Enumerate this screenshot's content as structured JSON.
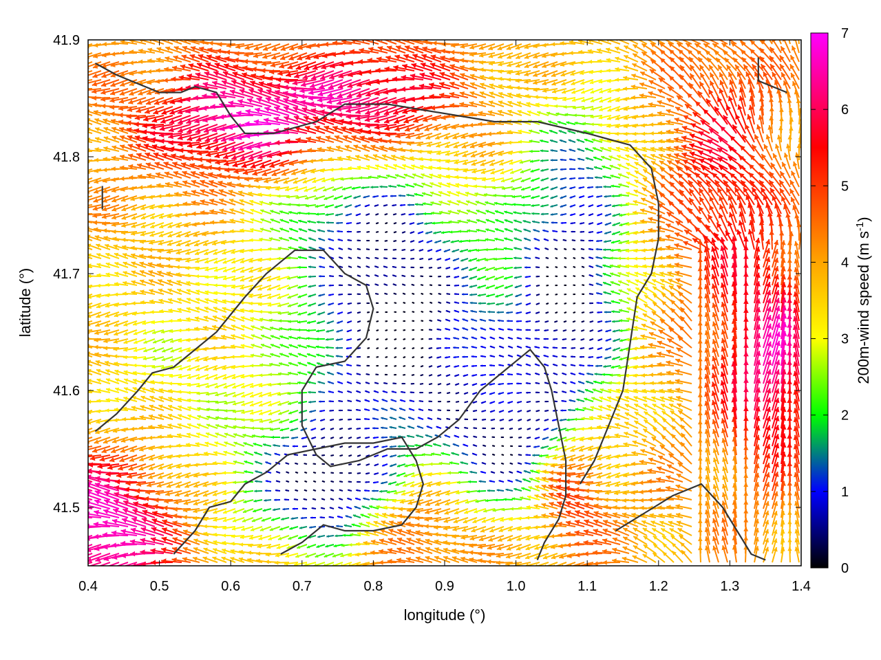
{
  "chart_data": {
    "type": "vector-field",
    "xlabel": "longitude (°)",
    "ylabel": "latitude (°)",
    "xlim": [
      0.4,
      1.4
    ],
    "ylim": [
      41.45,
      41.9
    ],
    "xticks": [
      "0.4",
      "0.5",
      "0.6",
      "0.7",
      "0.8",
      "0.9",
      "1.0",
      "1.1",
      "1.2",
      "1.3",
      "1.4"
    ],
    "yticks": [
      "41.5",
      "41.6",
      "41.7",
      "41.8",
      "41.9"
    ],
    "colorbar": {
      "label_prefix": "200m-wind speed (m s",
      "label_exp": "-1",
      "label_suffix": ")",
      "range": [
        0,
        7
      ],
      "ticks": [
        "0",
        "1",
        "2",
        "3",
        "4",
        "5",
        "6",
        "7"
      ],
      "colors": [
        "#000000",
        "#0000ff",
        "#00ff00",
        "#ffff00",
        "#ffa500",
        "#ff0000",
        "#ff00ff"
      ]
    },
    "grid": false,
    "coastlines": [
      [
        [
          0.41,
          41.88
        ],
        [
          0.44,
          41.87
        ],
        [
          0.5,
          41.855
        ],
        [
          0.53,
          41.855
        ],
        [
          0.55,
          41.86
        ],
        [
          0.58,
          41.855
        ],
        [
          0.6,
          41.835
        ],
        [
          0.62,
          41.82
        ],
        [
          0.66,
          41.82
        ],
        [
          0.72,
          41.83
        ],
        [
          0.76,
          41.845
        ],
        [
          0.82,
          41.845
        ],
        [
          0.87,
          41.84
        ],
        [
          0.92,
          41.835
        ],
        [
          0.97,
          41.83
        ],
        [
          1.03,
          41.83
        ],
        [
          1.1,
          41.82
        ],
        [
          1.16,
          41.81
        ],
        [
          1.19,
          41.79
        ],
        [
          1.2,
          41.76
        ],
        [
          1.2,
          41.73
        ],
        [
          1.19,
          41.7
        ],
        [
          1.17,
          41.68
        ],
        [
          1.16,
          41.64
        ],
        [
          1.15,
          41.6
        ],
        [
          1.13,
          41.57
        ],
        [
          1.11,
          41.54
        ],
        [
          1.09,
          41.52
        ]
      ],
      [
        [
          0.41,
          41.565
        ],
        [
          0.44,
          41.58
        ],
        [
          0.47,
          41.6
        ],
        [
          0.49,
          41.615
        ],
        [
          0.52,
          41.62
        ],
        [
          0.55,
          41.635
        ],
        [
          0.58,
          41.65
        ],
        [
          0.6,
          41.665
        ],
        [
          0.62,
          41.68
        ],
        [
          0.65,
          41.7
        ],
        [
          0.69,
          41.72
        ],
        [
          0.73,
          41.72
        ],
        [
          0.76,
          41.7
        ],
        [
          0.79,
          41.69
        ],
        [
          0.8,
          41.67
        ],
        [
          0.79,
          41.645
        ],
        [
          0.76,
          41.625
        ],
        [
          0.72,
          41.62
        ],
        [
          0.7,
          41.6
        ],
        [
          0.7,
          41.57
        ],
        [
          0.72,
          41.545
        ],
        [
          0.74,
          41.535
        ],
        [
          0.78,
          41.54
        ],
        [
          0.82,
          41.55
        ],
        [
          0.86,
          41.55
        ],
        [
          0.89,
          41.56
        ],
        [
          0.92,
          41.575
        ],
        [
          0.95,
          41.6
        ],
        [
          0.99,
          41.62
        ],
        [
          1.02,
          41.635
        ],
        [
          1.04,
          41.62
        ],
        [
          1.05,
          41.6
        ],
        [
          1.06,
          41.57
        ],
        [
          1.07,
          41.54
        ],
        [
          1.07,
          41.51
        ],
        [
          1.06,
          41.49
        ],
        [
          1.04,
          41.47
        ],
        [
          1.03,
          41.455
        ]
      ],
      [
        [
          0.52,
          41.46
        ],
        [
          0.55,
          41.48
        ],
        [
          0.57,
          41.5
        ],
        [
          0.6,
          41.505
        ],
        [
          0.62,
          41.52
        ],
        [
          0.65,
          41.53
        ],
        [
          0.68,
          41.545
        ],
        [
          0.72,
          41.55
        ],
        [
          0.76,
          41.555
        ],
        [
          0.8,
          41.555
        ],
        [
          0.84,
          41.56
        ],
        [
          0.86,
          41.54
        ],
        [
          0.87,
          41.52
        ],
        [
          0.86,
          41.5
        ],
        [
          0.84,
          41.485
        ],
        [
          0.8,
          41.48
        ],
        [
          0.76,
          41.48
        ],
        [
          0.73,
          41.485
        ],
        [
          0.7,
          41.47
        ],
        [
          0.67,
          41.46
        ]
      ],
      [
        [
          1.14,
          41.48
        ],
        [
          1.18,
          41.495
        ],
        [
          1.22,
          41.51
        ],
        [
          1.26,
          41.52
        ],
        [
          1.29,
          41.5
        ],
        [
          1.31,
          41.48
        ],
        [
          1.33,
          41.46
        ],
        [
          1.35,
          41.455
        ]
      ],
      [
        [
          0.42,
          41.775
        ],
        [
          0.42,
          41.755
        ]
      ],
      [
        [
          1.34,
          41.885
        ],
        [
          1.34,
          41.865
        ],
        [
          1.38,
          41.855
        ]
      ]
    ]
  }
}
